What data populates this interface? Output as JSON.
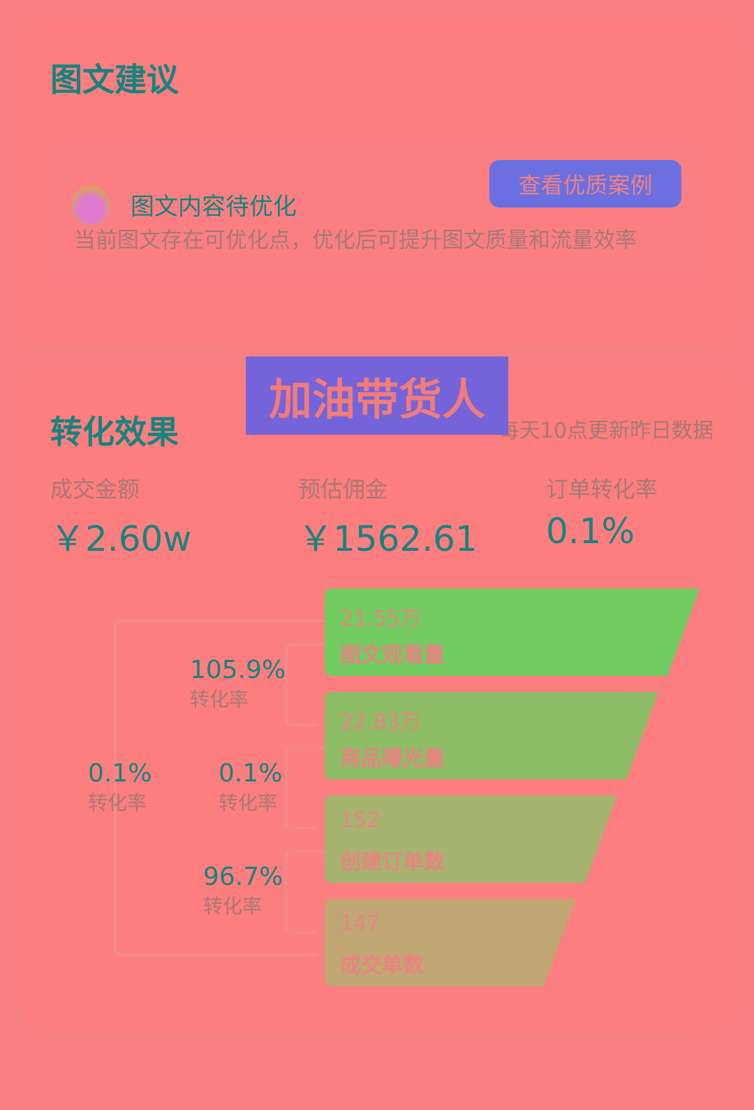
{
  "suggestion": {
    "title": "图文建议",
    "status": "图文内容待优化",
    "button": "查看优质案例",
    "description": "当前图文存在可优化点，优化后可提升图文质量和流量效率",
    "avatar_icon": "crying-face-icon"
  },
  "conversion": {
    "title": "转化效果",
    "update_note": "每天10点更新昨日数据",
    "metrics": [
      {
        "label": "成交金额",
        "value": "￥2.60w"
      },
      {
        "label": "预估佣金",
        "value": "￥1562.61"
      },
      {
        "label": "订单转化率",
        "value": "0.1%"
      }
    ],
    "funnel": [
      {
        "value": "21.55万",
        "label": "图文观看量",
        "color": "#72cc62"
      },
      {
        "value": "22.83万",
        "label": "商品曝光量",
        "color": "#8dbd66"
      },
      {
        "value": "152",
        "label": "创建订单数",
        "color": "#a5b36e"
      },
      {
        "value": "147",
        "label": "成交单数",
        "color": "#bfa672"
      }
    ],
    "rates": [
      {
        "value": "105.9%",
        "label": "转化率"
      },
      {
        "value": "0.1%",
        "label": "转化率"
      },
      {
        "value": "96.7%",
        "label": "转化率"
      },
      {
        "value": "0.1%",
        "label": "转化率"
      }
    ]
  },
  "banner": "加油带货人"
}
